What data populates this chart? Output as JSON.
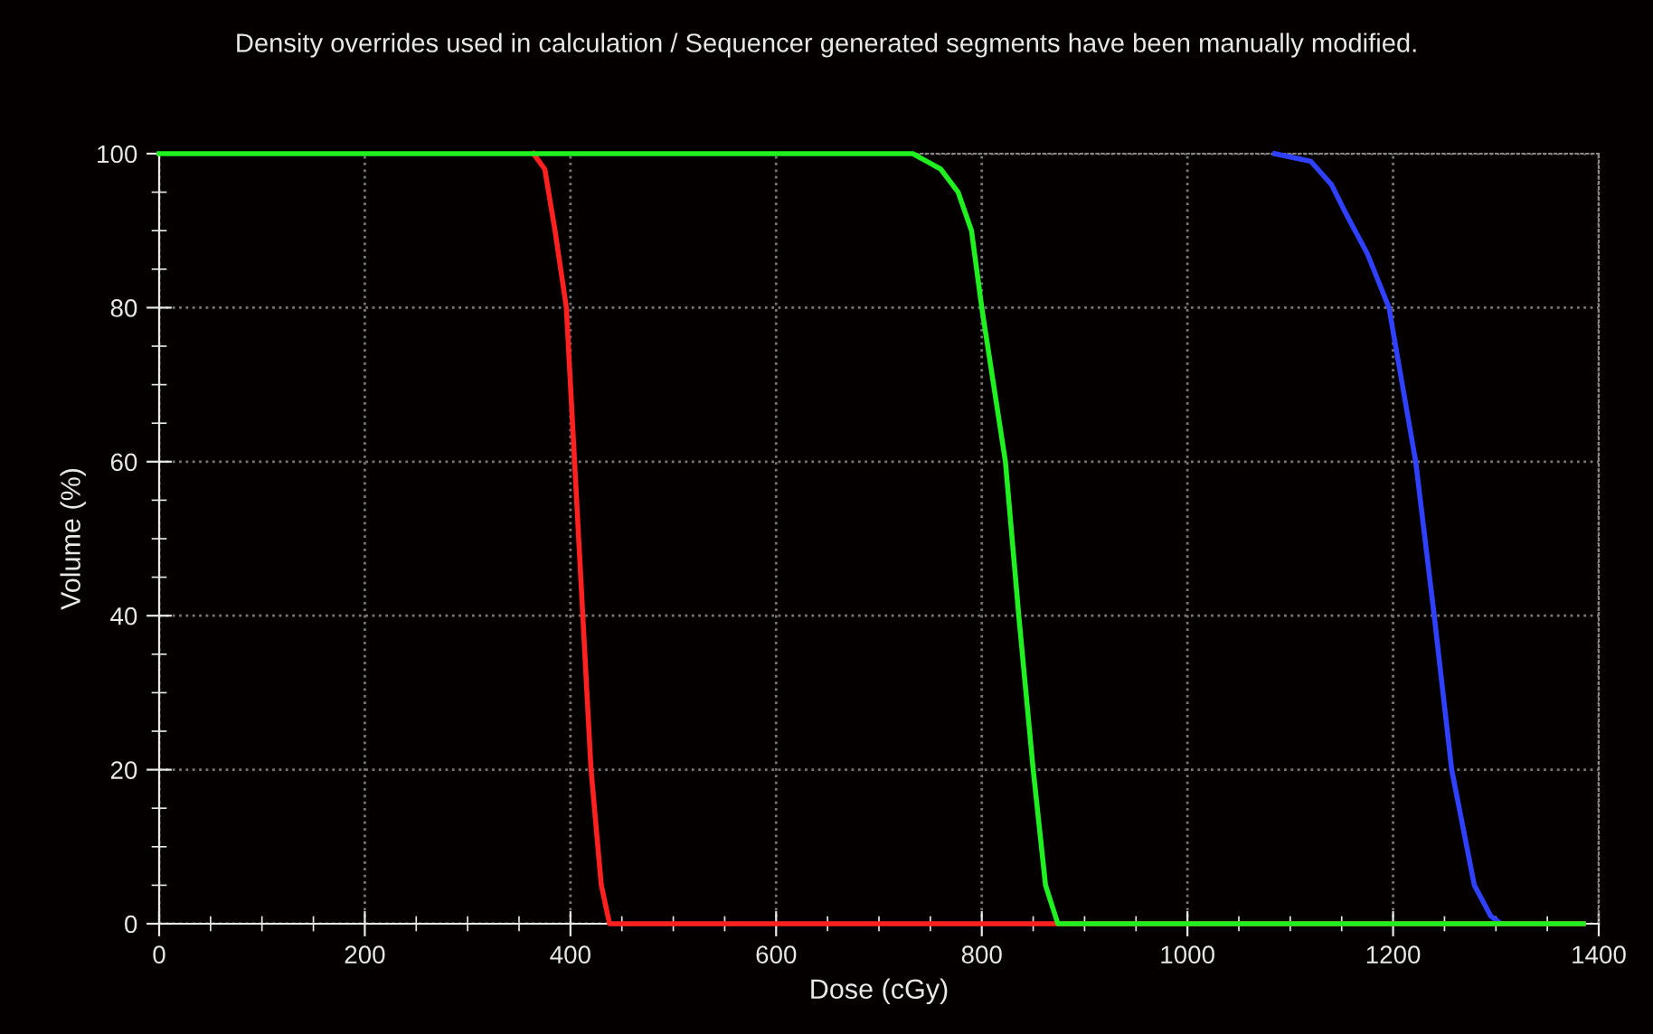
{
  "chart_data": {
    "type": "line",
    "title": "Density overrides used in calculation / Sequencer generated segments have been manually modified.",
    "xlabel": "Dose (cGy)",
    "ylabel": "Volume (%)",
    "series": [
      {
        "color": "#3040ff",
        "x": [
          1085,
          1120,
          1140,
          1155,
          1175,
          1196,
          1222,
          1240,
          1257,
          1279,
          1295,
          1305,
          1310
        ],
        "values": [
          100,
          99,
          96,
          92,
          87,
          80,
          60,
          40,
          20,
          5,
          1,
          0,
          0
        ]
      },
      {
        "color": "#ff2020",
        "x": [
          364,
          375,
          385,
          396,
          404,
          412,
          420,
          430,
          438,
          450,
          1385
        ],
        "values": [
          100,
          98,
          90,
          80,
          60,
          40,
          20,
          5,
          0,
          0,
          0
        ]
      },
      {
        "color": "#20f020",
        "x": [
          0,
          733,
          760,
          777,
          790,
          800,
          823,
          836,
          850,
          862,
          874,
          890,
          1385
        ],
        "values": [
          100,
          100,
          98,
          95,
          90,
          80,
          60,
          40,
          20,
          5,
          0,
          0,
          0
        ]
      }
    ],
    "xlim": [
      0,
      1400
    ],
    "xticks": [
      0,
      200,
      400,
      600,
      800,
      1000,
      1200,
      1400
    ],
    "ylim": [
      0,
      100
    ],
    "yticks": [
      0,
      20,
      40,
      60,
      80,
      100
    ],
    "grid": true,
    "marker": "none",
    "line_style": "solid"
  }
}
